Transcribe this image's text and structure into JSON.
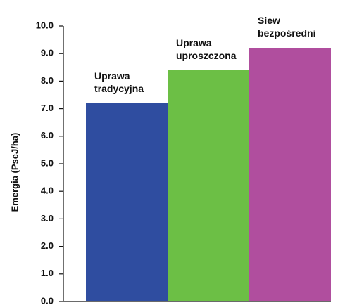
{
  "chart_data": {
    "type": "bar",
    "ylabel": "Emergia (PseJ/ha)",
    "categories": [
      "Uprawa tradycyjna",
      "Uprawa uproszczona",
      "Siew bezpośredni"
    ],
    "values": [
      7.2,
      8.4,
      9.2
    ],
    "colors": [
      "#2f4da0",
      "#6cbf45",
      "#b04e9e"
    ],
    "ylim": [
      0,
      10
    ],
    "yticks": [
      {
        "value": 0,
        "label": "0.0"
      },
      {
        "value": 1,
        "label": "1.0"
      },
      {
        "value": 2,
        "label": "2.0"
      },
      {
        "value": 3,
        "label": "3.0"
      },
      {
        "value": 4,
        "label": "4.0"
      },
      {
        "value": 5,
        "label": "5.0"
      },
      {
        "value": 6,
        "label": "6.0"
      },
      {
        "value": 7,
        "label": "7.0"
      },
      {
        "value": 8,
        "label": "8.0"
      },
      {
        "value": 9,
        "label": "9.0"
      },
      {
        "value": 10,
        "label": "10.0"
      }
    ]
  }
}
